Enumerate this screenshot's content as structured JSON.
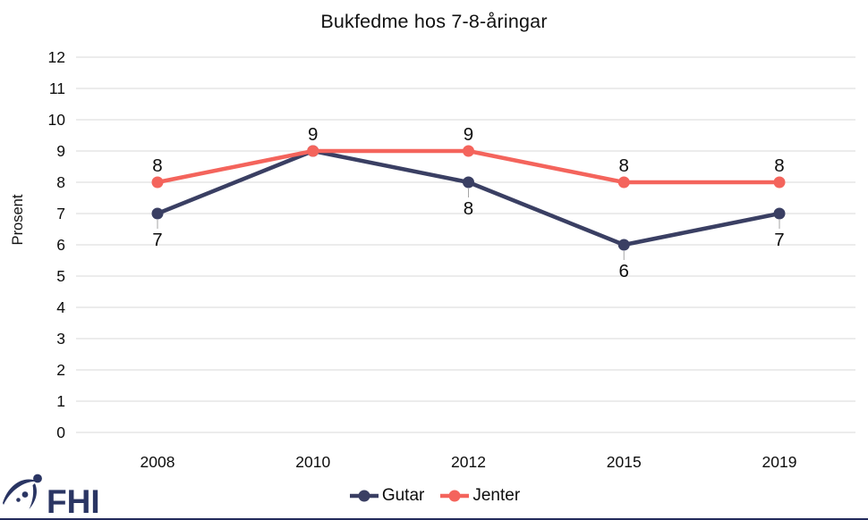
{
  "title": "Bukfedme hos 7-8-åringar",
  "y_axis": {
    "label": "Prosent",
    "tick_labels": [
      "0",
      "1",
      "2",
      "3",
      "4",
      "5",
      "6",
      "7",
      "8",
      "9",
      "10",
      "11",
      "12"
    ]
  },
  "x_axis": {
    "tick_labels": [
      "2008",
      "2010",
      "2012",
      "2015",
      "2019"
    ]
  },
  "legend": {
    "position": "bottom-center",
    "items": [
      {
        "label": "Gutar",
        "color": "#3A3F63"
      },
      {
        "label": "Jenter",
        "color": "#F4645C"
      }
    ]
  },
  "logo": {
    "text": "FHI",
    "color": "#2A3563"
  },
  "colors": {
    "gridline": "#D9D9D9",
    "leader_line": "#A6A6A6",
    "bottom_rule": "#232A5C",
    "text": "#0d0d0d"
  },
  "chart_data": {
    "type": "line",
    "title": "Bukfedme hos 7-8-åringar",
    "categories": [
      "2008",
      "2010",
      "2012",
      "2015",
      "2019"
    ],
    "series": [
      {
        "name": "Gutar",
        "color": "#3A3F63",
        "values": [
          7,
          9,
          8,
          6,
          7
        ],
        "label_placement": "below",
        "label_skip_indices": [
          1
        ],
        "leader_lines": true
      },
      {
        "name": "Jenter",
        "color": "#F4645C",
        "values": [
          8,
          9,
          9,
          8,
          8
        ],
        "label_placement": "above",
        "label_skip_indices": [],
        "leader_lines": false
      }
    ],
    "xlabel": "",
    "ylabel": "Prosent",
    "ylim": [
      0,
      12
    ],
    "ytick_step": 1,
    "grid": "horizontal",
    "data_labels": true,
    "legend_position": "bottom"
  }
}
